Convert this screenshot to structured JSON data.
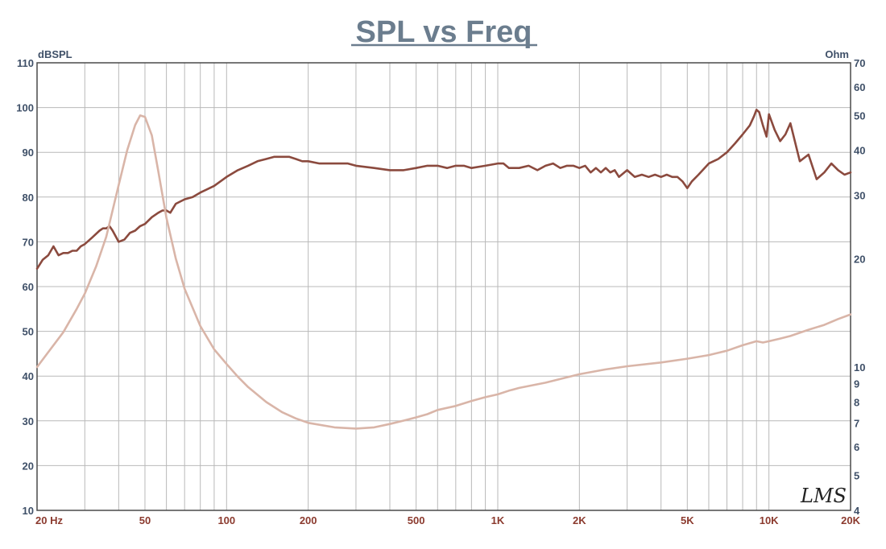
{
  "chart_data": {
    "type": "line",
    "title": "SPL vs Freq",
    "x_scale": "log",
    "xlim": [
      20,
      20000
    ],
    "x_ticks": [
      {
        "value": 20,
        "label": "20  Hz"
      },
      {
        "value": 50,
        "label": "50"
      },
      {
        "value": 100,
        "label": "100"
      },
      {
        "value": 200,
        "label": "200"
      },
      {
        "value": 500,
        "label": "500"
      },
      {
        "value": 1000,
        "label": "1K"
      },
      {
        "value": 2000,
        "label": "2K"
      },
      {
        "value": 5000,
        "label": "5K"
      },
      {
        "value": 10000,
        "label": "10K"
      },
      {
        "value": 20000,
        "label": "20K"
      }
    ],
    "y_left": {
      "label": "dBSPL",
      "lim": [
        10,
        110
      ],
      "ticks": [
        10,
        20,
        30,
        40,
        50,
        60,
        70,
        80,
        90,
        100,
        110
      ]
    },
    "y_right": {
      "label": "Ohm",
      "scale": "log",
      "lim": [
        4,
        70
      ],
      "ticks": [
        4,
        5,
        6,
        7,
        8,
        9,
        10,
        20,
        30,
        40,
        50,
        60,
        70
      ]
    },
    "grid": true,
    "series": [
      {
        "axis": "left",
        "color": "#8b4a3e",
        "x": [
          20,
          21,
          22,
          23,
          24,
          25,
          26,
          27,
          28,
          29,
          30,
          32,
          34,
          35,
          36,
          37,
          38,
          40,
          42,
          44,
          46,
          48,
          50,
          53,
          56,
          58,
          60,
          62,
          65,
          70,
          75,
          80,
          90,
          100,
          110,
          120,
          130,
          140,
          150,
          160,
          170,
          180,
          190,
          200,
          220,
          240,
          260,
          280,
          300,
          350,
          400,
          450,
          500,
          550,
          600,
          650,
          700,
          750,
          800,
          900,
          1000,
          1050,
          1100,
          1200,
          1300,
          1400,
          1500,
          1600,
          1700,
          1800,
          1900,
          2000,
          2100,
          2200,
          2300,
          2400,
          2500,
          2600,
          2700,
          2800,
          3000,
          3200,
          3400,
          3600,
          3800,
          4000,
          4200,
          4400,
          4600,
          4800,
          5000,
          5200,
          5500,
          6000,
          6500,
          7000,
          7500,
          8000,
          8500,
          8800,
          9000,
          9200,
          9500,
          9800,
          10000,
          10500,
          11000,
          11500,
          12000,
          13000,
          14000,
          15000,
          16000,
          17000,
          18000,
          19000,
          20000
        ],
        "y": [
          64,
          66,
          67,
          69,
          67,
          67.5,
          67.5,
          68,
          68,
          69,
          69.5,
          71,
          72.5,
          73,
          73,
          73.5,
          72.5,
          70,
          70.5,
          72,
          72.5,
          73.5,
          74,
          75.5,
          76.5,
          77,
          77,
          76.5,
          78.5,
          79.5,
          80,
          81,
          82.5,
          84.5,
          86,
          87,
          88,
          88.5,
          89,
          89,
          89,
          88.5,
          88,
          88,
          87.5,
          87.5,
          87.5,
          87.5,
          87,
          86.5,
          86,
          86,
          86.5,
          87,
          87,
          86.5,
          87,
          87,
          86.5,
          87,
          87.5,
          87.5,
          86.5,
          86.5,
          87,
          86,
          87,
          87.5,
          86.5,
          87,
          87,
          86.5,
          87,
          85.5,
          86.5,
          85.5,
          86.5,
          85.5,
          86,
          84.5,
          86,
          84.5,
          85,
          84.5,
          85,
          84.5,
          85,
          84.5,
          84.5,
          83.5,
          82,
          83.5,
          85,
          87.5,
          88.5,
          90,
          92,
          94,
          96,
          98,
          99.5,
          99,
          96,
          93.5,
          98.5,
          95,
          92.5,
          94,
          96.5,
          88,
          89.5,
          84,
          85.5,
          87.5,
          86,
          85,
          85.5
        ]
      },
      {
        "axis": "right",
        "color": "#d9b5a8",
        "x": [
          20,
          22,
          25,
          28,
          30,
          33,
          36,
          40,
          43,
          46,
          48,
          50,
          53,
          56,
          60,
          65,
          70,
          80,
          90,
          100,
          110,
          120,
          140,
          160,
          180,
          200,
          250,
          300,
          350,
          400,
          450,
          500,
          550,
          600,
          700,
          800,
          900,
          1000,
          1100,
          1200,
          1500,
          2000,
          2500,
          3000,
          4000,
          5000,
          6000,
          7000,
          8000,
          9000,
          9500,
          10000,
          11000,
          12000,
          14000,
          16000,
          18000,
          20000
        ],
        "y": [
          10,
          11,
          12.5,
          14.5,
          16,
          19,
          23,
          32,
          40,
          47,
          50,
          49.5,
          44,
          35,
          26,
          20,
          16.5,
          13,
          11.2,
          10.2,
          9.4,
          8.8,
          8,
          7.5,
          7.2,
          7,
          6.8,
          6.75,
          6.8,
          6.95,
          7.1,
          7.25,
          7.4,
          7.6,
          7.8,
          8.05,
          8.25,
          8.4,
          8.6,
          8.75,
          9.05,
          9.55,
          9.85,
          10.05,
          10.3,
          10.55,
          10.8,
          11.1,
          11.5,
          11.8,
          11.7,
          11.8,
          12,
          12.2,
          12.7,
          13.1,
          13.6,
          14
        ]
      }
    ],
    "watermark": "LMS"
  }
}
